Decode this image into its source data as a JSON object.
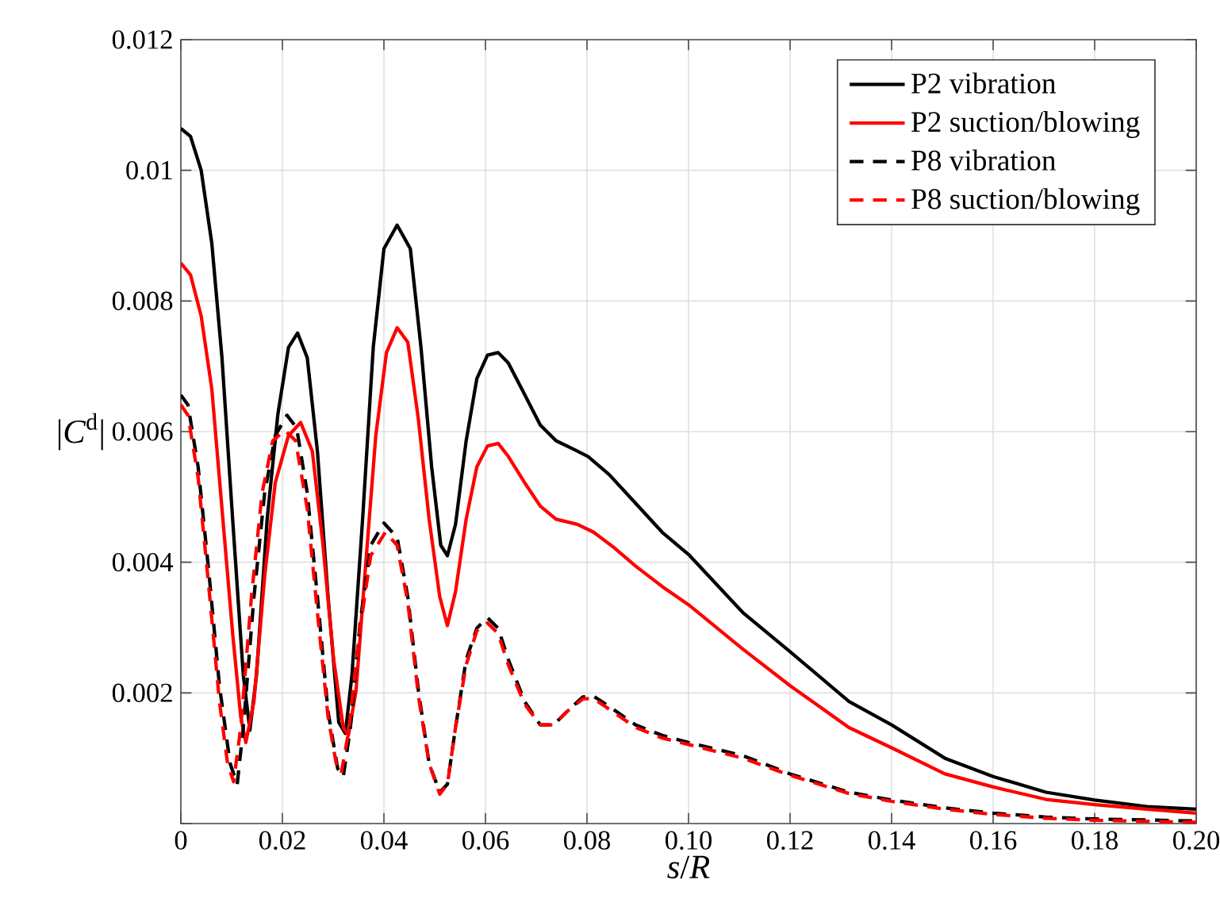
{
  "chart_data": {
    "type": "line",
    "xlabel": "*s*/*R*",
    "ylabel": "|*C*$^{d}$|",
    "xlim": [
      0,
      0.2
    ],
    "ylim": [
      0,
      0.012
    ],
    "xticks": [
      0,
      0.02,
      0.04,
      0.06,
      0.08,
      {
        "value": 0.1,
        "label": "0.10"
      },
      0.12,
      0.14,
      0.16,
      0.18,
      {
        "value": 0.2,
        "label": "0.20"
      }
    ],
    "yticks": [
      {
        "value": 0,
        "label": null
      },
      0.002,
      0.004,
      0.006,
      0.008,
      0.01,
      0.012
    ],
    "grid": true,
    "legend": "top right",
    "series": [
      {
        "name": "P2 vibration",
        "color": "#000000",
        "line_style": "solid",
        "x": [
          0,
          0.0019,
          0.004,
          0.0061,
          0.0081,
          0.0102,
          0.0123,
          0.0136,
          0.0149,
          0.017,
          0.0191,
          0.0212,
          0.023,
          0.0249,
          0.0269,
          0.029,
          0.0311,
          0.0324,
          0.0337,
          0.0358,
          0.0379,
          0.04,
          0.0426,
          0.0452,
          0.0473,
          0.0494,
          0.0512,
          0.0525,
          0.0541,
          0.0562,
          0.0583,
          0.0604,
          0.0625,
          0.0645,
          0.0677,
          0.0708,
          0.0739,
          0.0771,
          0.0802,
          0.0844,
          0.0896,
          0.0948,
          0.1,
          0.1107,
          0.12,
          0.1316,
          0.14,
          0.1505,
          0.16,
          0.1704,
          0.18,
          0.1903,
          0.2
        ],
        "values": [
          0.01064,
          0.01052,
          0.01,
          0.00888,
          0.00713,
          0.00466,
          0.00227,
          0.00143,
          0.00227,
          0.00466,
          0.00626,
          0.00729,
          0.00751,
          0.00713,
          0.0057,
          0.00347,
          0.00155,
          0.00138,
          0.00227,
          0.00466,
          0.00729,
          0.0088,
          0.00916,
          0.0088,
          0.00729,
          0.00546,
          0.00426,
          0.0041,
          0.00458,
          0.00586,
          0.00681,
          0.00717,
          0.00721,
          0.00705,
          0.00657,
          0.0061,
          0.00586,
          0.00574,
          0.00562,
          0.00534,
          0.0049,
          0.00446,
          0.00412,
          0.00323,
          0.00263,
          0.00187,
          0.00151,
          0.001,
          0.00072,
          0.00048,
          0.00036,
          0.00026,
          0.00022
        ]
      },
      {
        "name": "P2 suction/blowing",
        "color": "#ff0000",
        "line_style": "solid",
        "x": [
          0,
          0.0019,
          0.004,
          0.0061,
          0.0081,
          0.0102,
          0.0118,
          0.0128,
          0.0144,
          0.0165,
          0.0186,
          0.0212,
          0.0236,
          0.0259,
          0.028,
          0.0301,
          0.032,
          0.033,
          0.0345,
          0.0363,
          0.0384,
          0.0405,
          0.0426,
          0.0447,
          0.0468,
          0.0489,
          0.051,
          0.0525,
          0.0541,
          0.0562,
          0.0583,
          0.0604,
          0.0625,
          0.0645,
          0.0677,
          0.0708,
          0.0739,
          0.0781,
          0.0813,
          0.0854,
          0.0896,
          0.0948,
          0.1,
          0.1107,
          0.12,
          0.1316,
          0.14,
          0.1505,
          0.16,
          0.1704,
          0.18,
          0.1903,
          0.2
        ],
        "values": [
          0.00858,
          0.0084,
          0.00777,
          0.00665,
          0.00482,
          0.00291,
          0.00163,
          0.00124,
          0.00187,
          0.00378,
          0.00522,
          0.00594,
          0.00614,
          0.0057,
          0.00426,
          0.00251,
          0.00147,
          0.00135,
          0.00203,
          0.00386,
          0.00594,
          0.00721,
          0.00759,
          0.00737,
          0.00618,
          0.00466,
          0.00347,
          0.00303,
          0.00355,
          0.00466,
          0.00546,
          0.00578,
          0.00582,
          0.00562,
          0.00522,
          0.00486,
          0.00466,
          0.00458,
          0.00446,
          0.00422,
          0.00394,
          0.00363,
          0.00335,
          0.00267,
          0.00211,
          0.00147,
          0.00116,
          0.00076,
          0.00056,
          0.00037,
          0.00029,
          0.00022,
          0.00016
        ]
      },
      {
        "name": "P8 vibration",
        "color": "#000000",
        "line_style": "dashed",
        "x": [
          0,
          0.0014,
          0.0034,
          0.0055,
          0.0076,
          0.0097,
          0.0111,
          0.0123,
          0.0144,
          0.0165,
          0.0186,
          0.0209,
          0.0228,
          0.0249,
          0.0269,
          0.029,
          0.0309,
          0.032,
          0.0334,
          0.0353,
          0.0374,
          0.04,
          0.0426,
          0.0447,
          0.0468,
          0.0489,
          0.051,
          0.0525,
          0.0541,
          0.0562,
          0.0583,
          0.0604,
          0.0625,
          0.0645,
          0.0677,
          0.0708,
          0.0734,
          0.076,
          0.0792,
          0.0813,
          0.0844,
          0.0896,
          0.0948,
          0.1,
          0.1107,
          0.12,
          0.1316,
          0.14,
          0.1505,
          0.16,
          0.1704,
          0.18,
          0.2
        ],
        "values": [
          0.00656,
          0.00641,
          0.00546,
          0.00386,
          0.00211,
          0.00092,
          0.0006,
          0.00147,
          0.00347,
          0.00506,
          0.00594,
          0.00625,
          0.00606,
          0.00506,
          0.00347,
          0.00171,
          0.00084,
          0.00072,
          0.00147,
          0.00307,
          0.00426,
          0.0046,
          0.00438,
          0.00347,
          0.00203,
          0.00092,
          0.00048,
          0.0006,
          0.00147,
          0.00251,
          0.00299,
          0.00315,
          0.00299,
          0.00251,
          0.00187,
          0.00151,
          0.00151,
          0.00171,
          0.00194,
          0.00195,
          0.00179,
          0.00151,
          0.00135,
          0.00124,
          0.00104,
          0.00076,
          0.00048,
          0.00036,
          0.00024,
          0.00016,
          0.0001,
          7e-05,
          4e-05
        ]
      },
      {
        "name": "P8 suction/blowing",
        "color": "#ff0000",
        "line_style": "dashed",
        "x": [
          0,
          0.0014,
          0.0034,
          0.0055,
          0.0076,
          0.0092,
          0.0104,
          0.0118,
          0.0139,
          0.016,
          0.0181,
          0.0205,
          0.0226,
          0.0249,
          0.0269,
          0.029,
          0.0306,
          0.0316,
          0.033,
          0.0353,
          0.0374,
          0.0403,
          0.0426,
          0.0447,
          0.0468,
          0.0489,
          0.051,
          0.0525,
          0.0541,
          0.0562,
          0.0583,
          0.0604,
          0.0625,
          0.0645,
          0.0677,
          0.0708,
          0.0734,
          0.076,
          0.0792,
          0.0813,
          0.0844,
          0.0896,
          0.0948,
          0.1,
          0.1107,
          0.12,
          0.1316,
          0.14,
          0.1505,
          0.16,
          0.1704,
          0.18,
          0.2
        ],
        "values": [
          0.00641,
          0.00625,
          0.0053,
          0.00363,
          0.00187,
          0.00092,
          0.00064,
          0.00147,
          0.00347,
          0.00506,
          0.00586,
          0.00602,
          0.00586,
          0.00482,
          0.00323,
          0.00163,
          0.00092,
          0.00077,
          0.00139,
          0.00299,
          0.0041,
          0.00446,
          0.00426,
          0.00339,
          0.00195,
          0.00092,
          0.00045,
          0.0006,
          0.00147,
          0.00243,
          0.00295,
          0.00307,
          0.00291,
          0.00243,
          0.00183,
          0.00151,
          0.00151,
          0.00171,
          0.00191,
          0.00191,
          0.00175,
          0.00147,
          0.00131,
          0.00121,
          0.001,
          0.00074,
          0.00046,
          0.00034,
          0.00022,
          0.00014,
          8e-05,
          5e-05,
          2e-05
        ]
      }
    ]
  }
}
